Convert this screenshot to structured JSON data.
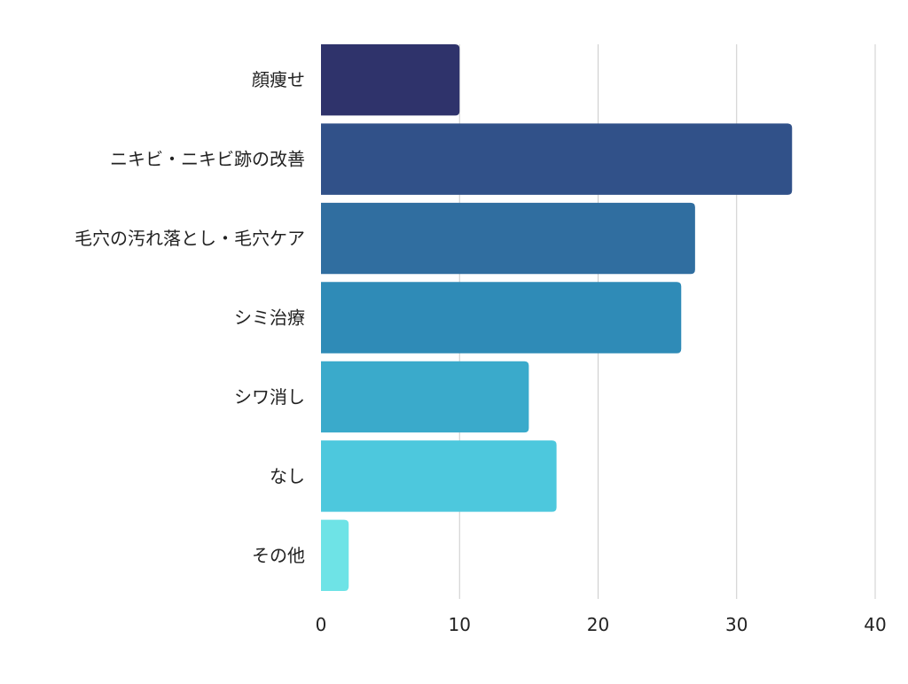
{
  "chart_data": {
    "type": "bar",
    "orientation": "horizontal",
    "categories": [
      "顔痩せ",
      "ニキビ・ニキビ跡の改善",
      "毛穴の汚れ落とし・毛穴ケア",
      "シミ治療",
      "シワ消し",
      "なし",
      "その他"
    ],
    "values": [
      10,
      34,
      27,
      26,
      15,
      17,
      2
    ],
    "xlim": [
      0,
      40
    ],
    "x_ticks": [
      0,
      10,
      20,
      30,
      40
    ],
    "title": "",
    "xlabel": "",
    "ylabel": "",
    "grid": "vertical",
    "legend": "none",
    "colors": [
      "#2f336b",
      "#315189",
      "#306ea0",
      "#2f8bb7",
      "#3aaacb",
      "#4dc8dd",
      "#6ee3e6"
    ],
    "grid_color": "#cccccc"
  }
}
